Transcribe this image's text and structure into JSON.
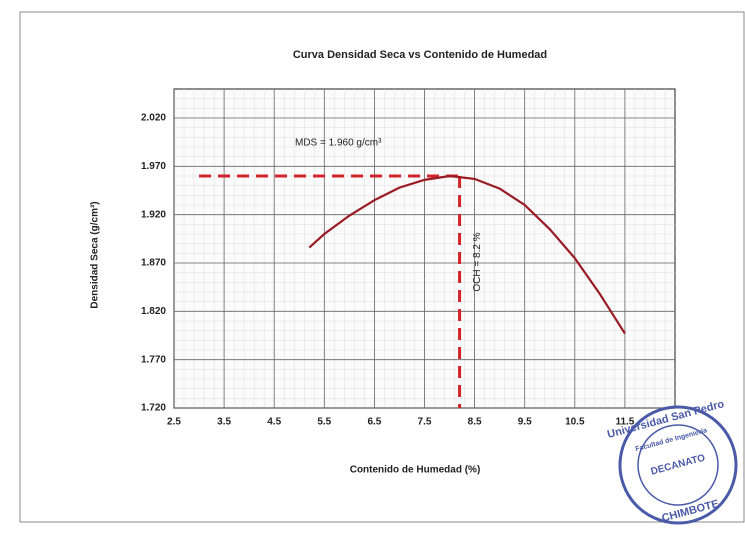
{
  "chart_data": {
    "type": "line",
    "title": "Curva Densidad Seca  vs Contenido de Humedad",
    "xlabel": "Contenido de Humedad (%)",
    "ylabel": "Densidad Seca  (g/cm³)",
    "x": [
      5.2,
      5.5,
      6.0,
      6.5,
      7.0,
      7.5,
      8.0,
      8.5,
      9.0,
      9.5,
      10.0,
      10.5,
      11.0,
      11.5
    ],
    "series": [
      {
        "name": "Densidad Seca",
        "color": "#9b1b24",
        "values": [
          1.886,
          1.9,
          1.919,
          1.935,
          1.948,
          1.956,
          1.96,
          1.957,
          1.947,
          1.93,
          1.905,
          1.875,
          1.838,
          1.797
        ]
      }
    ],
    "xlim": [
      2.5,
      12.5
    ],
    "ylim": [
      1.72,
      2.05
    ],
    "xticks": [
      2.5,
      3.5,
      4.5,
      5.5,
      6.5,
      7.5,
      8.5,
      9.5,
      10.5,
      11.5
    ],
    "yticks": [
      {
        "value": 1.72,
        "label": "1.720"
      },
      {
        "value": 1.77,
        "label": "1.770"
      },
      {
        "value": 1.82,
        "label": "1.820"
      },
      {
        "value": 1.87,
        "label": "1.870"
      },
      {
        "value": 1.92,
        "label": "1.920"
      },
      {
        "value": 1.97,
        "label": "1.970"
      },
      {
        "value": 2.02,
        "label": "2.020"
      }
    ],
    "grid": true,
    "reference": {
      "x": 8.2,
      "y": 1.96,
      "x_start": 3.0,
      "color": "#d2232a"
    },
    "annotations": [
      "MDS = 1.960 g/cm³",
      "OCH = 8.2 %"
    ],
    "stamp": [
      "Universidad San Pedro",
      "Facultad de Ingeniería",
      "DECANATO",
      "CHIMBOTE"
    ]
  }
}
